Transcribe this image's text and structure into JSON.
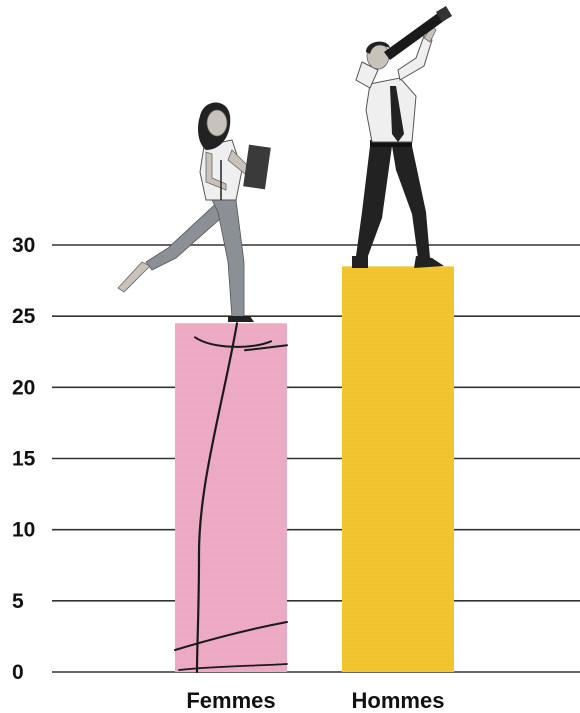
{
  "chart_data": {
    "type": "bar",
    "categories": [
      "Femmes",
      "Hommes"
    ],
    "values": [
      24.5,
      28.5
    ],
    "ylim": [
      0,
      30
    ],
    "yticks": [
      0,
      5,
      10,
      15,
      20,
      25,
      30
    ],
    "grid": true,
    "colors": [
      "#ecaac4",
      "#f2c52e"
    ],
    "title": "",
    "xlabel": "",
    "ylabel": ""
  }
}
